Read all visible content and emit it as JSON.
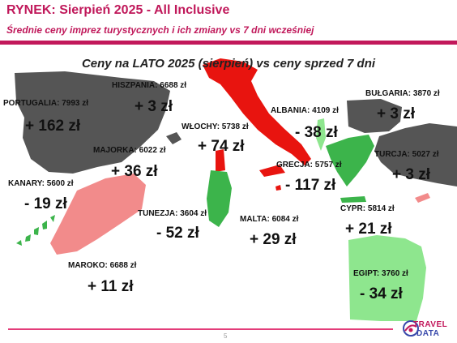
{
  "header": {
    "title": "RYNEK: Sierpień 2025 - All Inclusive",
    "subtitle": "Średnie ceny imprez turystycznych i ich zmiany vs 7 dni wcześniej"
  },
  "map": {
    "title": "Ceny na LATO 2025 (sierpień) vs ceny sprzed 7 dni",
    "legend_colors": {
      "increase": "#e8140f",
      "decrease_large": "#3cb44b",
      "increase_small": "#555555",
      "decrease_light": "#f28b8b"
    },
    "countries": [
      {
        "id": "portugalia",
        "label": "PORTUGALIA: 7993 zł",
        "change": "+ 162 zł",
        "color": "#555555"
      },
      {
        "id": "hiszpania",
        "label": "HISZPANIA: 6688 zł",
        "change": "+ 3 zł",
        "color": "#555555"
      },
      {
        "id": "majorka",
        "label": "MAJORKA: 6022 zł",
        "change": "+ 36 zł",
        "color": "#555555"
      },
      {
        "id": "kanary",
        "label": "KANARY: 5600 zł",
        "change": "- 19 zł",
        "color": "#3cb44b"
      },
      {
        "id": "maroko",
        "label": "MAROKO: 6688 zł",
        "change": "+ 11 zł",
        "color": "#f28b8b"
      },
      {
        "id": "wlochy",
        "label": "WŁOCHY: 5738 zł",
        "change": "+ 74 zł",
        "color": "#e8140f"
      },
      {
        "id": "tunezja",
        "label": "TUNEZJA: 3604 zł",
        "change": "- 52 zł",
        "color": "#3cb44b"
      },
      {
        "id": "malta",
        "label": "MALTA: 6084 zł",
        "change": "+ 29 zł",
        "color": "#e8140f"
      },
      {
        "id": "albania",
        "label": "ALBANIA: 4109 zł",
        "change": "- 38 zł",
        "color": "#8ee68e"
      },
      {
        "id": "grecja",
        "label": "GRECJA: 5757 zł",
        "change": "- 117 zł",
        "color": "#3cb44b"
      },
      {
        "id": "bulgaria",
        "label": "BUŁGARIA: 3870 zł",
        "change": "+ 3 zł",
        "color": "#555555"
      },
      {
        "id": "turcja",
        "label": "TURCJA: 5027 zł",
        "change": "+ 3 zł",
        "color": "#555555"
      },
      {
        "id": "cypr",
        "label": "CYPR: 5814 zł",
        "change": "+ 21 zł",
        "color": "#f28b8b"
      },
      {
        "id": "egipt",
        "label": "EGIPT: 3760 zł",
        "change": "- 34 zł",
        "color": "#8ee68e"
      }
    ]
  },
  "footer": {
    "page_number": "5",
    "logo_line1": "TRAVEL",
    "logo_line2": "DATA"
  }
}
